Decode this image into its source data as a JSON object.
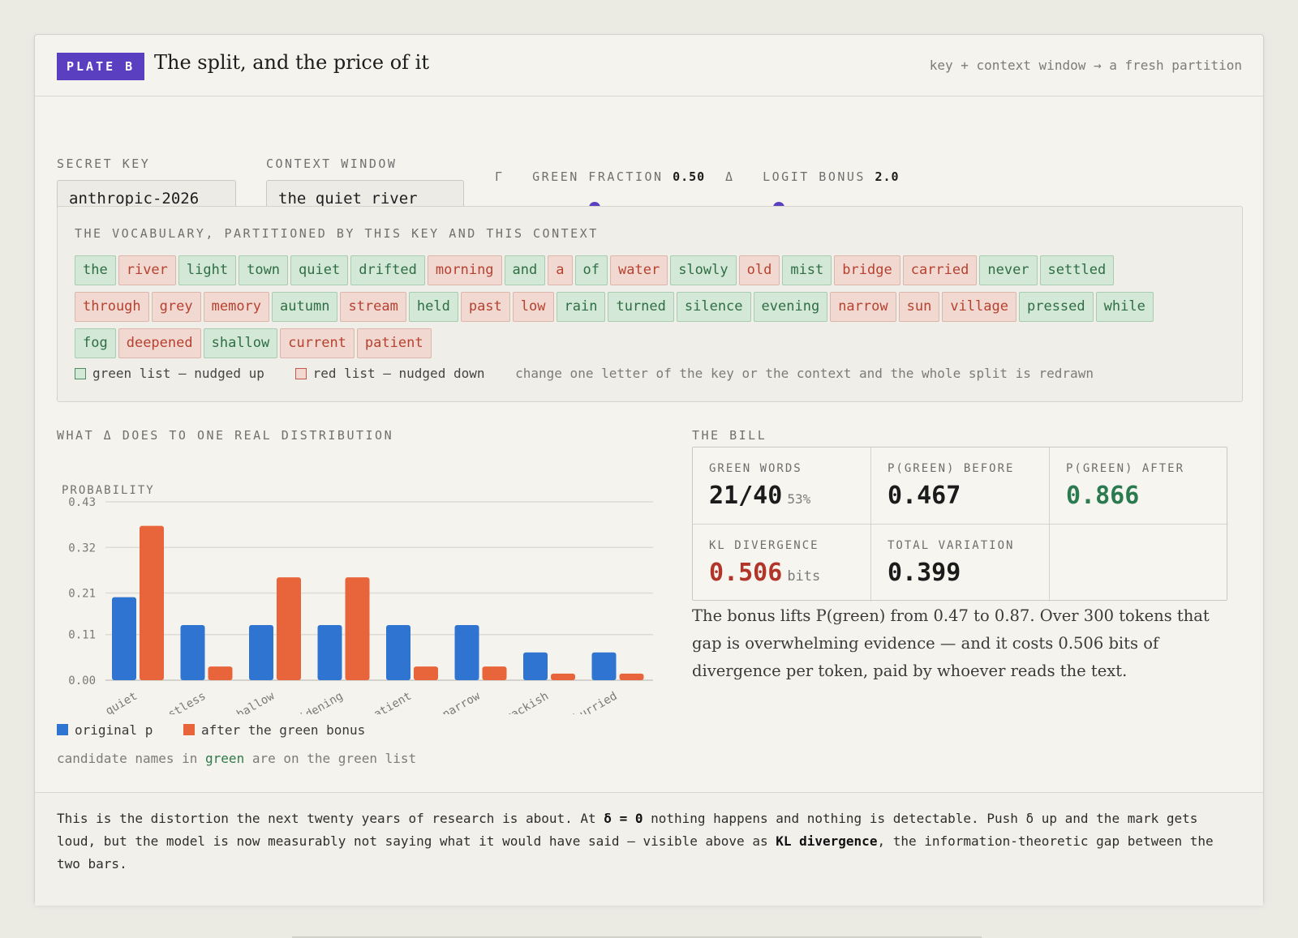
{
  "header": {
    "badge": "PLATE B",
    "title": "The split, and the price of it",
    "subtitle": "key + context window → a fresh partition"
  },
  "controls": {
    "secret_key_label": "SECRET KEY",
    "secret_key_value": "anthropic-2026",
    "context_label": "CONTEXT WINDOW",
    "context_value": "the quiet river",
    "gamma_symbol": "Γ",
    "gamma_label": "GREEN FRACTION",
    "gamma_value": "0.50",
    "gamma_fraction": 0.5,
    "delta_symbol": "Δ",
    "delta_label": "LOGIT BONUS",
    "delta_value": "2.0",
    "delta_fraction": 0.27,
    "accent": "#5a3fc0"
  },
  "vocab": {
    "title": "THE VOCABULARY, PARTITIONED BY THIS KEY AND THIS CONTEXT",
    "tokens": [
      {
        "w": "the",
        "c": "green"
      },
      {
        "w": "river",
        "c": "red"
      },
      {
        "w": "light",
        "c": "green"
      },
      {
        "w": "town",
        "c": "green"
      },
      {
        "w": "quiet",
        "c": "green"
      },
      {
        "w": "drifted",
        "c": "green"
      },
      {
        "w": "morning",
        "c": "red"
      },
      {
        "w": "and",
        "c": "green"
      },
      {
        "w": "a",
        "c": "red"
      },
      {
        "w": "of",
        "c": "green"
      },
      {
        "w": "water",
        "c": "red"
      },
      {
        "w": "slowly",
        "c": "green"
      },
      {
        "w": "old",
        "c": "red"
      },
      {
        "w": "mist",
        "c": "green"
      },
      {
        "w": "bridge",
        "c": "red"
      },
      {
        "w": "carried",
        "c": "red"
      },
      {
        "w": "never",
        "c": "green"
      },
      {
        "w": "settled",
        "c": "green"
      },
      {
        "w": "through",
        "c": "red"
      },
      {
        "w": "grey",
        "c": "red"
      },
      {
        "w": "memory",
        "c": "red"
      },
      {
        "w": "autumn",
        "c": "green"
      },
      {
        "w": "stream",
        "c": "red"
      },
      {
        "w": "held",
        "c": "green"
      },
      {
        "w": "past",
        "c": "red"
      },
      {
        "w": "low",
        "c": "red"
      },
      {
        "w": "rain",
        "c": "green"
      },
      {
        "w": "turned",
        "c": "green"
      },
      {
        "w": "silence",
        "c": "green"
      },
      {
        "w": "evening",
        "c": "green"
      },
      {
        "w": "narrow",
        "c": "red"
      },
      {
        "w": "sun",
        "c": "red"
      },
      {
        "w": "village",
        "c": "red"
      },
      {
        "w": "pressed",
        "c": "green"
      },
      {
        "w": "while",
        "c": "green"
      },
      {
        "w": "fog",
        "c": "green"
      },
      {
        "w": "deepened",
        "c": "red"
      },
      {
        "w": "shallow",
        "c": "green"
      },
      {
        "w": "current",
        "c": "red"
      },
      {
        "w": "patient",
        "c": "red"
      }
    ],
    "legend_green": "green list — nudged up",
    "legend_red": "red list — nudged down",
    "legend_note": "change one letter of the key or the context and the whole split is redrawn"
  },
  "chart_title": "WHAT Δ DOES TO ONE REAL DISTRIBUTION",
  "chart_data": {
    "type": "bar",
    "ylabel": "PROBABILITY",
    "yticks": [
      "0.00",
      "0.11",
      "0.21",
      "0.32",
      "0.43"
    ],
    "ylim": [
      0,
      0.43
    ],
    "categories": [
      "quiet",
      "restless",
      "shallow",
      "widening",
      "patient",
      "narrow",
      "brackish",
      "unhurried"
    ],
    "series": [
      {
        "name": "original p",
        "color": "#2f74d0",
        "values": [
          0.2,
          0.133,
          0.133,
          0.133,
          0.133,
          0.133,
          0.067,
          0.067
        ]
      },
      {
        "name": "after the green bonus",
        "color": "#e8643a",
        "values": [
          0.372,
          0.033,
          0.248,
          0.248,
          0.033,
          0.033,
          0.016,
          0.016
        ]
      }
    ],
    "grid": true,
    "legend": "bottom-left"
  },
  "chart_note_pre": "candidate names in ",
  "chart_note_green": "green",
  "chart_note_post": " are on the green list",
  "bill": {
    "title": "THE BILL",
    "green_words_label": "GREEN WORDS",
    "green_words_value": "21/40",
    "green_words_pct": "53%",
    "before_label": "P(GREEN) BEFORE",
    "before_value": "0.467",
    "after_label": "P(GREEN) AFTER",
    "after_value": "0.866",
    "kl_label": "KL DIVERGENCE",
    "kl_value": "0.506",
    "kl_unit": "bits",
    "tv_label": "TOTAL VARIATION",
    "tv_value": "0.399",
    "text": "The bonus lifts P(green) from 0.47 to 0.87. Over 300 tokens that gap is overwhelming evidence — and it costs 0.506 bits of divergence per token, paid by whoever reads the text."
  },
  "footer": {
    "p1": "This is the distortion the next twenty years of research is about. At ",
    "b1": "δ = 0",
    "p2": " nothing happens and nothing is detectable. Push δ up and the mark gets loud, but the model is now measurably not saying what it would have said — visible above as ",
    "b2": "KL divergence",
    "p3": ", the information-theoretic gap between the two bars."
  }
}
